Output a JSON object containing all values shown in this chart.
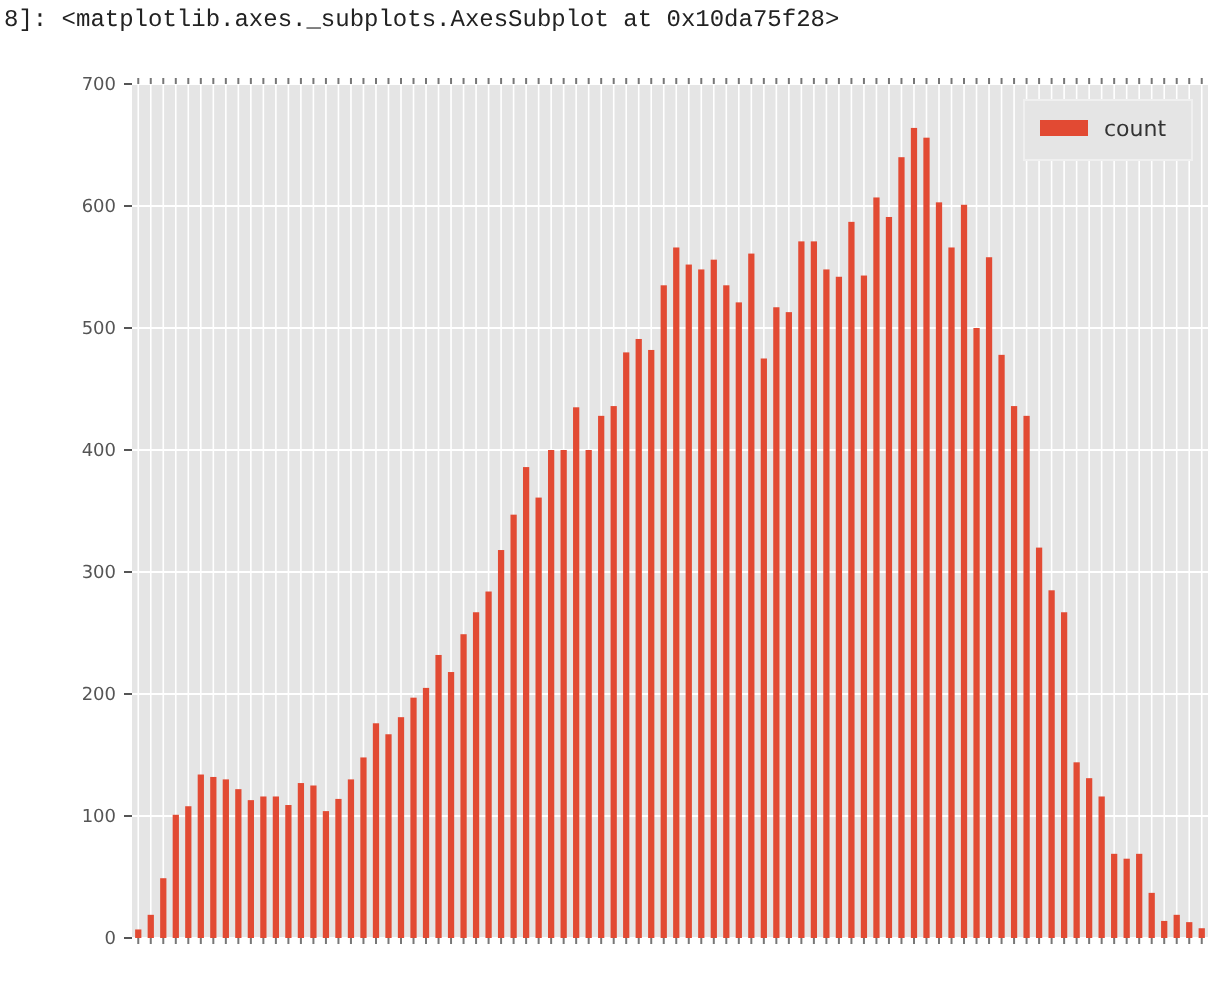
{
  "chart_data": {
    "type": "bar",
    "categories": [
      null,
      null,
      null,
      null,
      null,
      null,
      null,
      null,
      null,
      null,
      null,
      null,
      null,
      null,
      null,
      null,
      null,
      null,
      null,
      null,
      null,
      null,
      null,
      null,
      null,
      null,
      null,
      null,
      null,
      null,
      null,
      null,
      null,
      null,
      null,
      null,
      null,
      null,
      null,
      null,
      null,
      null,
      null,
      null,
      null,
      null,
      null,
      null,
      null,
      null,
      null,
      null,
      null,
      null,
      null,
      null,
      null,
      null,
      null,
      null,
      null,
      null,
      null,
      null,
      null,
      null,
      null,
      null,
      null,
      null,
      null,
      null,
      null,
      null,
      null,
      null,
      null,
      null,
      null,
      null,
      null,
      null,
      null,
      null,
      null,
      null
    ],
    "series": [
      {
        "name": "count",
        "color": "#e24a33",
        "values": [
          7,
          19,
          49,
          101,
          108,
          134,
          132,
          130,
          122,
          113,
          116,
          116,
          109,
          127,
          125,
          104,
          114,
          130,
          148,
          176,
          167,
          181,
          197,
          205,
          232,
          218,
          249,
          267,
          284,
          318,
          347,
          386,
          361,
          400,
          400,
          435,
          400,
          428,
          436,
          480,
          491,
          482,
          535,
          566,
          552,
          548,
          556,
          535,
          521,
          561,
          475,
          517,
          513,
          571,
          571,
          548,
          542,
          587,
          543,
          607,
          591,
          640,
          664,
          656,
          603,
          566,
          601,
          500,
          558,
          478,
          436,
          428,
          320,
          285,
          267,
          144,
          131,
          116,
          69,
          65,
          69,
          37,
          14,
          19,
          13,
          8
        ]
      }
    ],
    "ylim": [
      0,
      700
    ],
    "yticks": [
      0,
      100,
      200,
      300,
      400,
      500,
      600,
      700
    ],
    "grid": true,
    "legend": "top right",
    "annotations": [
      "8]: <matplotlib.axes._subplots.AxesSubplot at 0x10da75f28>"
    ]
  }
}
